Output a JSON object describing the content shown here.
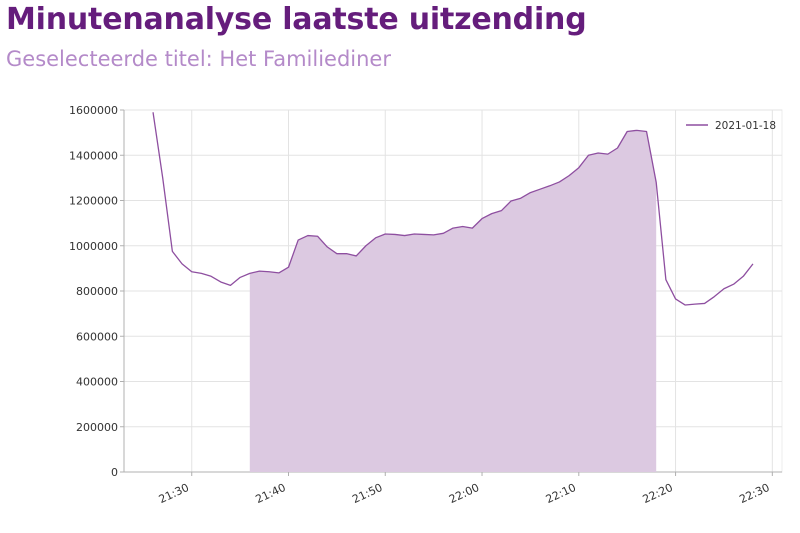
{
  "header": {
    "title": "Minutenanalyse laatste uitzending",
    "subtitle": "Geselecteerde titel: Het Familiediner"
  },
  "colors": {
    "line": "#8e4fa0",
    "fill": "#dcc9e1",
    "title": "#651d7c",
    "subtitle": "#b48ac9",
    "grid": "#e3e3e3",
    "axis": "#b0b0b0"
  },
  "chart_data": {
    "type": "area",
    "title": "",
    "xlabel": "",
    "ylabel": "",
    "xlim": [
      "21:23",
      "22:31"
    ],
    "ylim": [
      0,
      1600000
    ],
    "x_ticks": [
      "21:30",
      "21:40",
      "21:50",
      "22:00",
      "22:10",
      "22:20",
      "22:30"
    ],
    "y_ticks": [
      "0",
      "200000",
      "400000",
      "600000",
      "800000",
      "1000000",
      "1200000",
      "1400000",
      "1600000"
    ],
    "grid": true,
    "legend": {
      "position": "top-right",
      "entries": [
        "2021-01-18"
      ]
    },
    "shaded_interval": {
      "start": "21:36",
      "end": "22:18"
    },
    "series": [
      {
        "name": "2021-01-18",
        "x": [
          "21:26",
          "21:27",
          "21:28",
          "21:29",
          "21:30",
          "21:31",
          "21:32",
          "21:33",
          "21:34",
          "21:35",
          "21:36",
          "21:37",
          "21:38",
          "21:39",
          "21:40",
          "21:41",
          "21:42",
          "21:43",
          "21:44",
          "21:45",
          "21:46",
          "21:47",
          "21:48",
          "21:49",
          "21:50",
          "21:51",
          "21:52",
          "21:53",
          "21:54",
          "21:55",
          "21:56",
          "21:57",
          "21:58",
          "21:59",
          "22:00",
          "22:01",
          "22:02",
          "22:03",
          "22:04",
          "22:05",
          "22:06",
          "22:07",
          "22:08",
          "22:09",
          "22:10",
          "22:11",
          "22:12",
          "22:13",
          "22:14",
          "22:15",
          "22:16",
          "22:17",
          "22:18",
          "22:19",
          "22:20",
          "22:21",
          "22:22",
          "22:23",
          "22:24",
          "22:25",
          "22:26",
          "22:27",
          "22:28"
        ],
        "values": [
          1590000,
          1300000,
          975000,
          920000,
          885000,
          878000,
          865000,
          840000,
          825000,
          860000,
          878000,
          888000,
          885000,
          880000,
          905000,
          1025000,
          1045000,
          1042000,
          995000,
          965000,
          965000,
          955000,
          1000000,
          1035000,
          1052000,
          1050000,
          1045000,
          1052000,
          1050000,
          1048000,
          1055000,
          1078000,
          1085000,
          1078000,
          1120000,
          1142000,
          1155000,
          1198000,
          1210000,
          1235000,
          1250000,
          1265000,
          1282000,
          1310000,
          1345000,
          1400000,
          1410000,
          1405000,
          1432000,
          1505000,
          1510000,
          1505000,
          1280000,
          850000,
          765000,
          738000,
          742000,
          745000,
          775000,
          810000,
          830000,
          865000,
          920000
        ]
      }
    ]
  }
}
